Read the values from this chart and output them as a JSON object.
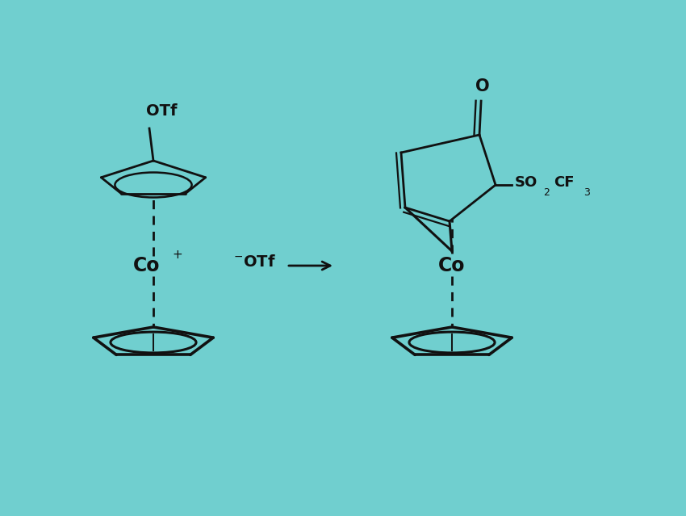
{
  "bg_color": "#70cfcf",
  "line_color": "#111111",
  "figsize": [
    8.5,
    6.39
  ],
  "dpi": 100,
  "xlim": [
    0,
    8.5
  ],
  "ylim": [
    0,
    6.39
  ]
}
